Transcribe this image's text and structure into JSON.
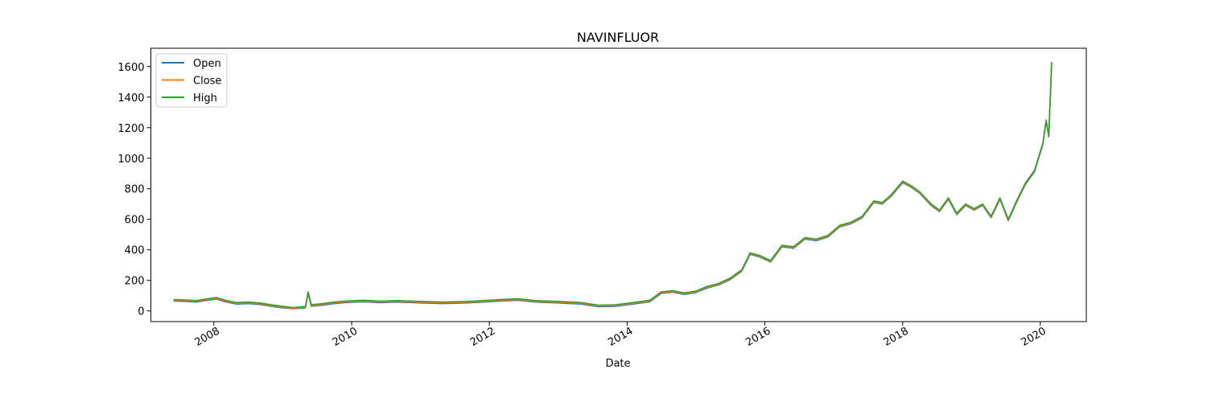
{
  "chart_data": {
    "type": "line",
    "title": "NAVINFLUOR",
    "xlabel": "Date",
    "ylabel": "",
    "xlim": [
      "2007-02-01",
      "2020-09-01"
    ],
    "ylim": [
      -70,
      1720
    ],
    "yticks": [
      0,
      200,
      400,
      600,
      800,
      1000,
      1200,
      1400,
      1600
    ],
    "xticks": [
      "2008",
      "2010",
      "2012",
      "2014",
      "2016",
      "2018",
      "2020"
    ],
    "grid": false,
    "legend_position": "top-left",
    "colors": {
      "Open": "#1f77b4",
      "Close": "#ff7f0e",
      "High": "#2ca02c"
    },
    "series": [
      {
        "name": "Open",
        "offset": -10
      },
      {
        "name": "Close",
        "offset": -5
      },
      {
        "name": "High",
        "offset": 0
      }
    ],
    "x": [
      "2007-06-01",
      "2007-08-01",
      "2007-10-01",
      "2007-12-01",
      "2008-01-15",
      "2008-03-01",
      "2008-05-01",
      "2008-07-01",
      "2008-09-01",
      "2008-11-01",
      "2009-01-01",
      "2009-03-01",
      "2009-05-01",
      "2009-05-15",
      "2009-06-01",
      "2009-08-01",
      "2009-10-01",
      "2009-12-01",
      "2010-03-01",
      "2010-06-01",
      "2010-09-01",
      "2011-01-01",
      "2011-05-01",
      "2011-09-01",
      "2012-01-01",
      "2012-03-01",
      "2012-06-01",
      "2012-09-01",
      "2013-01-01",
      "2013-05-01",
      "2013-08-01",
      "2013-11-01",
      "2014-02-01",
      "2014-05-01",
      "2014-07-01",
      "2014-09-01",
      "2014-11-01",
      "2015-01-01",
      "2015-03-01",
      "2015-05-01",
      "2015-07-01",
      "2015-09-01",
      "2015-10-15",
      "2015-12-01",
      "2016-02-01",
      "2016-04-01",
      "2016-06-01",
      "2016-08-01",
      "2016-10-01",
      "2016-12-01",
      "2017-02-01",
      "2017-04-01",
      "2017-06-01",
      "2017-08-01",
      "2017-09-15",
      "2017-11-01",
      "2018-01-01",
      "2018-02-15",
      "2018-04-01",
      "2018-06-01",
      "2018-07-15",
      "2018-09-01",
      "2018-10-15",
      "2018-12-01",
      "2019-01-15",
      "2019-03-01",
      "2019-04-15",
      "2019-06-01",
      "2019-07-15",
      "2019-09-01",
      "2019-10-15",
      "2019-12-01",
      "2020-01-15",
      "2020-02-01",
      "2020-02-15",
      "2020-03-01"
    ],
    "high": [
      75,
      72,
      68,
      80,
      88,
      70,
      55,
      58,
      52,
      40,
      30,
      22,
      30,
      125,
      40,
      48,
      58,
      65,
      70,
      64,
      68,
      62,
      58,
      62,
      70,
      74,
      80,
      68,
      62,
      55,
      38,
      40,
      55,
      70,
      125,
      132,
      118,
      130,
      160,
      180,
      215,
      270,
      380,
      365,
      330,
      430,
      420,
      480,
      470,
      495,
      560,
      580,
      620,
      720,
      710,
      760,
      850,
      820,
      780,
      700,
      660,
      740,
      640,
      700,
      670,
      700,
      620,
      740,
      600,
      730,
      840,
      920,
      1100,
      1250,
      1150,
      1630
    ]
  }
}
